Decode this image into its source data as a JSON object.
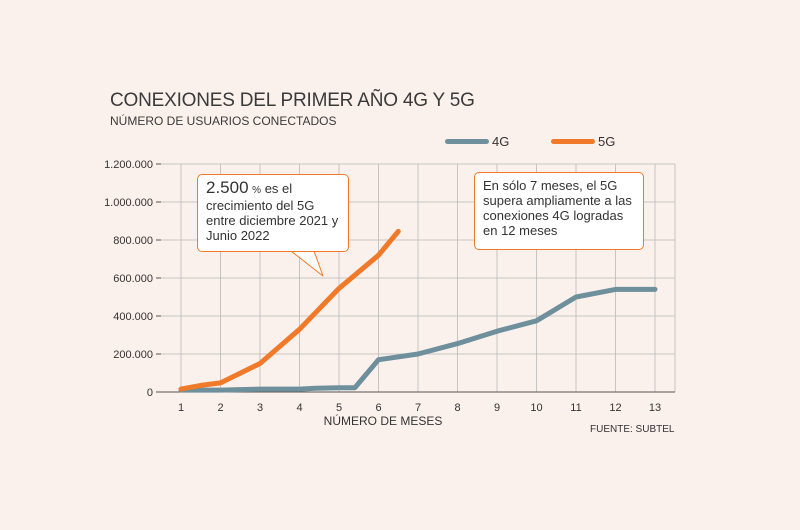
{
  "chart_data": {
    "type": "line",
    "title": "CONEXIONES DEL PRIMER AÑO 4G Y 5G",
    "subtitle": "NÚMERO DE USUARIOS CONECTADOS",
    "xlabel": "NÚMERO DE MESES",
    "ylabel": "",
    "categories": [
      "1",
      "2",
      "3",
      "4",
      "5",
      "6",
      "7",
      "8",
      "9",
      "10",
      "11",
      "12",
      "13"
    ],
    "y_ticks": [
      "0",
      "200.000",
      "400.000",
      "600.000",
      "800.000",
      "1.000.000",
      "1.200.000"
    ],
    "ylim": [
      0,
      1200000
    ],
    "grid": true,
    "series": [
      {
        "name": "4G",
        "color": "#6e8f9c",
        "x": [
          1,
          2,
          3,
          4,
          4.4,
          5,
          5.4,
          6,
          7,
          8,
          9,
          10,
          11,
          12,
          13
        ],
        "values": [
          10000,
          10000,
          15000,
          15000,
          20000,
          22000,
          22000,
          170000,
          200000,
          255000,
          320000,
          375000,
          500000,
          540000,
          540000
        ]
      },
      {
        "name": "5G",
        "color": "#f07a2a",
        "x": [
          1,
          1.5,
          2,
          3,
          4,
          5,
          6,
          6.5
        ],
        "values": [
          15000,
          35000,
          48000,
          150000,
          330000,
          545000,
          720000,
          845000
        ]
      }
    ],
    "legend_position": "top-right",
    "annotations": [
      {
        "big": "2.500",
        "pct": "%",
        "text": "es el crecimiento del 5G entre diciembre 2021 y Junio 2022"
      },
      {
        "text": "En sólo 7 meses, el 5G supera ampliamente a las conexiones 4G logradas en 12 meses"
      }
    ],
    "source": "FUENTE: SUBTEL"
  }
}
